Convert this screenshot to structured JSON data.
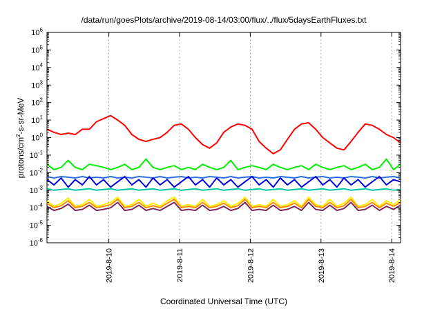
{
  "chart_data": {
    "type": "line",
    "title": "/data/run/goesPlots/archive/2019-08-14/03:00/flux/../flux/5daysEarthFluxes.txt",
    "xlabel": "Coordinated Universal Time (UTC)",
    "ylabel_parts": {
      "a": "protons/cm",
      "sup": "2",
      "b": "-s-sr-MeV"
    },
    "yscale": "log",
    "ylim": [
      1e-06,
      1000000.0
    ],
    "ytick_exponents": [
      -6,
      -5,
      -4,
      -3,
      -2,
      -1,
      0,
      1,
      2,
      3,
      4,
      5,
      6
    ],
    "ytick_base": "10",
    "xlim": [
      "2019-08-09T03:00",
      "2019-08-14T03:00"
    ],
    "xticks": [
      {
        "date": "2019-08-10T00:00",
        "label": "2019-8-10"
      },
      {
        "date": "2019-08-11T00:00",
        "label": "2019-8-11"
      },
      {
        "date": "2019-08-12T00:00",
        "label": "2019-8-12"
      },
      {
        "date": "2019-08-13T00:00",
        "label": "2019-8-13"
      },
      {
        "date": "2019-08-14T00:00",
        "label": "2019-8-14"
      }
    ],
    "grid": true,
    "series": [
      {
        "color": "#ff0000",
        "values": [
          3,
          2,
          1.5,
          1.8,
          1.5,
          3,
          3,
          8,
          12,
          18,
          10,
          5,
          1.5,
          0.8,
          0.6,
          0.8,
          1,
          2,
          5,
          6,
          3,
          1,
          0.4,
          0.25,
          0.5,
          2,
          4,
          6,
          5,
          3,
          0.6,
          0.25,
          0.12,
          0.2,
          0.8,
          3,
          6,
          7,
          3,
          1,
          0.5,
          0.25,
          0.2,
          0.6,
          2,
          6,
          5,
          3,
          1.5,
          1,
          0.5
        ]
      },
      {
        "color": "#00ee00",
        "values": [
          0.03,
          0.015,
          0.02,
          0.05,
          0.02,
          0.015,
          0.03,
          0.025,
          0.02,
          0.015,
          0.02,
          0.03,
          0.015,
          0.02,
          0.06,
          0.02,
          0.015,
          0.02,
          0.025,
          0.015,
          0.02,
          0.015,
          0.03,
          0.02,
          0.015,
          0.02,
          0.05,
          0.015,
          0.02,
          0.025,
          0.02,
          0.015,
          0.03,
          0.02,
          0.015,
          0.02,
          0.025,
          0.015,
          0.03,
          0.02,
          0.015,
          0.02,
          0.025,
          0.015,
          0.02,
          0.03,
          0.015,
          0.02,
          0.06,
          0.015,
          0.03
        ]
      },
      {
        "color": "#2a6fe0",
        "values": [
          0.006,
          0.005,
          0.006,
          0.0055,
          0.005,
          0.006,
          0.005,
          0.0055,
          0.005,
          0.006,
          0.005,
          0.0055,
          0.005,
          0.006,
          0.0055,
          0.005,
          0.006,
          0.005,
          0.0055,
          0.006,
          0.005,
          0.0055,
          0.005,
          0.006,
          0.0055,
          0.005,
          0.006,
          0.005,
          0.0055,
          0.006,
          0.005,
          0.0055,
          0.005,
          0.006,
          0.0055,
          0.005,
          0.006,
          0.005,
          0.0055,
          0.006,
          0.005,
          0.0055,
          0.005,
          0.006,
          0.0055,
          0.005,
          0.006,
          0.005,
          0.0055,
          0.006,
          0.005
        ]
      },
      {
        "color": "#0000dd",
        "values": [
          0.004,
          0.002,
          0.005,
          0.0015,
          0.004,
          0.002,
          0.006,
          0.002,
          0.004,
          0.0015,
          0.003,
          0.006,
          0.002,
          0.004,
          0.0015,
          0.005,
          0.002,
          0.004,
          0.0015,
          0.003,
          0.006,
          0.002,
          0.004,
          0.0015,
          0.005,
          0.002,
          0.004,
          0.0015,
          0.003,
          0.006,
          0.002,
          0.004,
          0.0015,
          0.005,
          0.002,
          0.004,
          0.0015,
          0.003,
          0.006,
          0.002,
          0.004,
          0.0015,
          0.005,
          0.002,
          0.004,
          0.0015,
          0.003,
          0.006,
          0.002,
          0.004,
          0.003
        ]
      },
      {
        "color": "#00c8a0",
        "values": [
          0.0012,
          0.001,
          0.0011,
          0.0012,
          0.001,
          0.0011,
          0.0012,
          0.001,
          0.0011,
          0.0012,
          0.001,
          0.0011,
          0.0012,
          0.001,
          0.0011,
          0.0012,
          0.001,
          0.0011,
          0.0012,
          0.001,
          0.0011,
          0.0012,
          0.001,
          0.0011,
          0.0012,
          0.001,
          0.0011,
          0.0012,
          0.001,
          0.0011,
          0.0012,
          0.001,
          0.0011,
          0.0012,
          0.001,
          0.0011,
          0.0012,
          0.001,
          0.0011,
          0.0012,
          0.001,
          0.0011,
          0.0012,
          0.001,
          0.0011,
          0.0012,
          0.001,
          0.0011,
          0.0012,
          0.001,
          0.0011
        ]
      },
      {
        "color": "#ffee00",
        "values": [
          0.00025,
          0.00012,
          0.00018,
          0.00035,
          0.00012,
          0.00015,
          0.0003,
          0.00012,
          0.00015,
          0.0002,
          0.0004,
          0.00012,
          0.00015,
          0.0003,
          0.00012,
          0.00018,
          0.00012,
          0.00025,
          0.0004,
          0.00012,
          0.00015,
          0.00012,
          0.0003,
          0.00012,
          0.00015,
          0.00025,
          0.00012,
          0.00018,
          0.0004,
          0.00012,
          0.00015,
          0.00012,
          0.0003,
          0.00012,
          0.00015,
          0.00025,
          0.00012,
          0.0004,
          0.00015,
          0.00012,
          0.0003,
          0.00012,
          0.00018,
          0.0004,
          0.00012,
          0.00015,
          0.0003,
          0.00012,
          0.00025,
          0.00015,
          0.0003
        ]
      },
      {
        "color": "#ff8c00",
        "values": [
          0.00018,
          0.0001,
          0.00013,
          0.00025,
          0.0001,
          0.00012,
          0.0002,
          0.0001,
          0.00012,
          0.00015,
          0.0003,
          0.0001,
          0.00012,
          0.0002,
          0.0001,
          0.00013,
          0.0001,
          0.00018,
          0.0003,
          0.0001,
          0.00012,
          0.0001,
          0.0002,
          0.0001,
          0.00012,
          0.00018,
          0.0001,
          0.00013,
          0.0003,
          0.0001,
          0.00012,
          0.0001,
          0.0002,
          0.0001,
          0.00012,
          0.00018,
          0.0001,
          0.0003,
          0.00012,
          0.0001,
          0.0002,
          0.0001,
          0.00013,
          0.0003,
          0.0001,
          0.00012,
          0.0002,
          0.0001,
          0.00018,
          0.00012,
          0.0002
        ]
      },
      {
        "color": "#7a2a5a",
        "values": [
          0.00012,
          7e-05,
          9e-05,
          0.00016,
          7e-05,
          8e-05,
          0.00014,
          7e-05,
          8e-05,
          0.0001,
          0.0002,
          7e-05,
          8e-05,
          0.00014,
          7e-05,
          9e-05,
          7e-05,
          0.00012,
          0.0002,
          7e-05,
          8e-05,
          7e-05,
          0.00014,
          7e-05,
          8e-05,
          0.00012,
          7e-05,
          9e-05,
          0.0002,
          7e-05,
          8e-05,
          7e-05,
          0.00014,
          7e-05,
          8e-05,
          0.00012,
          7e-05,
          0.0002,
          8e-05,
          7e-05,
          0.00014,
          7e-05,
          9e-05,
          0.0002,
          7e-05,
          8e-05,
          0.00014,
          7e-05,
          0.00012,
          8e-05,
          0.00014
        ]
      }
    ]
  }
}
